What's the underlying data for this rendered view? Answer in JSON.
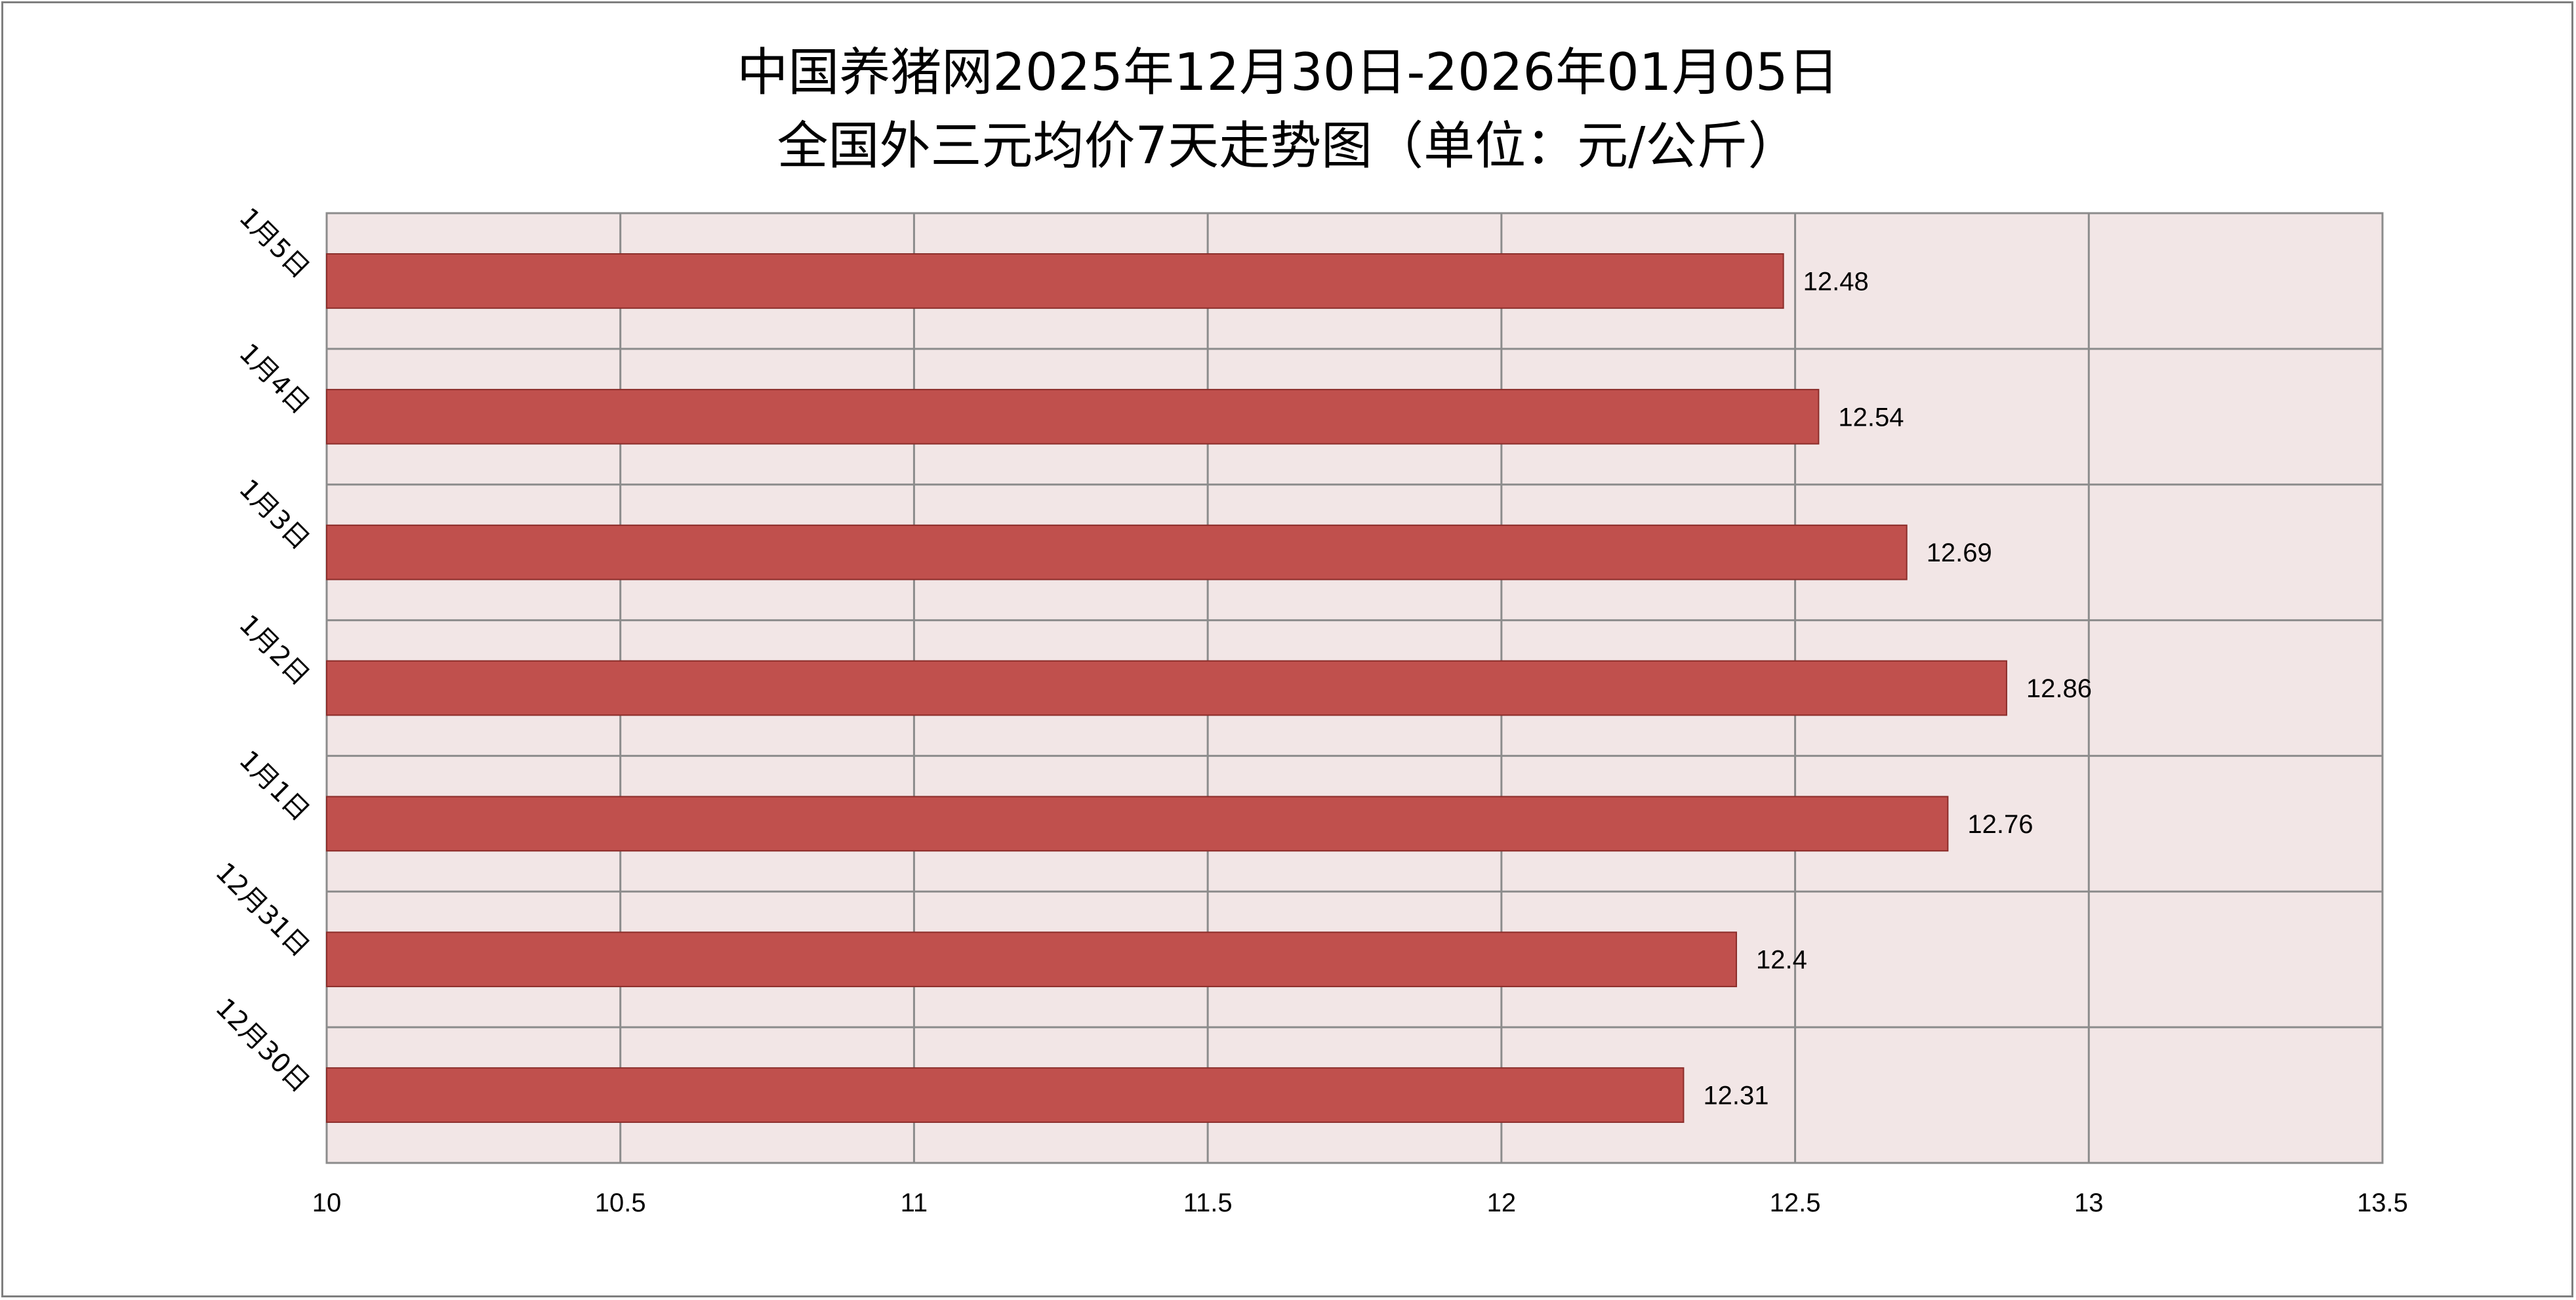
{
  "title_lines": [
    "中国养猪网2025年12月30日-2026年01月05日",
    "全国外三元均价7天走势图（单位：元/公斤）"
  ],
  "colors": {
    "bar": "#c0504d",
    "bar_border": "#8b2d2a",
    "plot_background": "#f2e6e6",
    "grid": "#8c8c8c"
  },
  "chart_data": {
    "type": "bar",
    "orientation": "horizontal",
    "title": "中国养猪网2025年12月30日-2026年01月05日 全国外三元均价7天走势图（单位：元/公斤）",
    "categories": [
      "1月5日",
      "1月4日",
      "1月3日",
      "1月2日",
      "1月1日",
      "12月31日",
      "12月30日"
    ],
    "values": [
      12.48,
      12.54,
      12.69,
      12.86,
      12.76,
      12.4,
      12.31
    ],
    "data_labels": [
      "12.48",
      "12.54",
      "12.69",
      "12.86",
      "12.76",
      "12.4",
      "12.31"
    ],
    "x_ticks": [
      "10",
      "10.5",
      "11",
      "11.5",
      "12",
      "12.5",
      "13",
      "13.5"
    ],
    "xlim": [
      10,
      13.5
    ],
    "xlabel": "",
    "ylabel": "",
    "grid": true,
    "legend": "none"
  }
}
